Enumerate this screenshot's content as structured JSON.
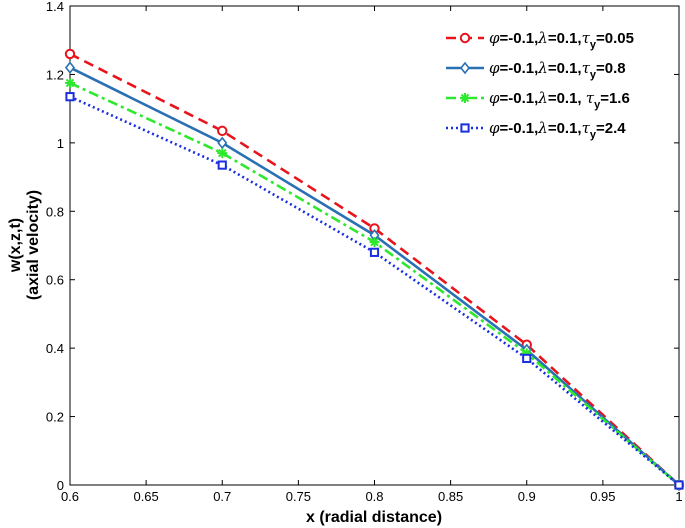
{
  "chart_data": {
    "type": "line",
    "xlabel": "x (radial distance)",
    "ylabel_lines": [
      "w(x,z,t)",
      "(axial velocity)"
    ],
    "xlim": [
      0.6,
      1.0
    ],
    "ylim": [
      0,
      1.4
    ],
    "xticks": [
      "0.6",
      "0.65",
      "0.7",
      "0.75",
      "0.8",
      "0.85",
      "0.9",
      "0.95",
      "1"
    ],
    "yticks": [
      "0",
      "0.2",
      "0.4",
      "0.6",
      "0.8",
      "1",
      "1.2",
      "1.4"
    ],
    "grid": false,
    "legend_position": "top-right",
    "x": [
      0.6,
      0.7,
      0.8,
      0.9,
      1.0
    ],
    "series": [
      {
        "legend": {
          "sym1": "φ",
          "part1": "=-0.1,",
          "sym2": "λ",
          "part2": "=0.1,",
          "sym3": "τ",
          "sub": "y",
          "part3": "=0.05"
        },
        "values": [
          1.26,
          1.035,
          0.75,
          0.41,
          0.0
        ],
        "color": "#e8141c",
        "dash": "dashed",
        "marker": "circle"
      },
      {
        "legend": {
          "sym1": "φ",
          "part1": "=-0.1,",
          "sym2": "λ",
          "part2": "=0.1,",
          "sym3": "τ",
          "sub": "y",
          "part3": "=0.8"
        },
        "values": [
          1.22,
          1.0,
          0.73,
          0.395,
          0.0
        ],
        "color": "#2a70b4",
        "dash": "solid",
        "marker": "diamond"
      },
      {
        "legend": {
          "sym1": "φ",
          "part1": "=-0.1,",
          "sym2": "λ",
          "part2": "=0.1, ",
          "sym3": "τ",
          "sub": "y",
          "part3": "=1.6"
        },
        "values": [
          1.175,
          0.97,
          0.71,
          0.385,
          0.0
        ],
        "color": "#2ee82e",
        "dash": "dashdot",
        "marker": "asterisk"
      },
      {
        "legend": {
          "sym1": "φ",
          "part1": "=-0.1,",
          "sym2": "λ",
          "part2": "=0.1,",
          "sym3": "τ",
          "sub": "y",
          "part3": "=2.4"
        },
        "values": [
          1.135,
          0.935,
          0.68,
          0.37,
          0.0
        ],
        "color": "#1a2ee0",
        "dash": "dotted",
        "marker": "square"
      }
    ]
  }
}
